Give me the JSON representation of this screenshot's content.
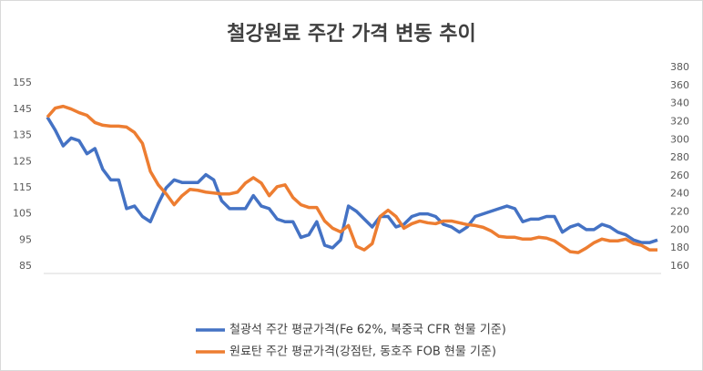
{
  "chart_data": {
    "type": "line",
    "title": "철강원료 주간 가격 변동 추이",
    "categories": [
      null,
      null,
      null,
      null,
      null,
      null,
      null,
      null,
      null,
      null,
      null,
      null,
      null,
      null,
      null,
      null,
      null,
      null,
      null,
      null,
      null,
      null,
      null,
      null,
      null,
      null,
      null,
      null,
      null,
      null,
      null,
      null,
      null,
      null,
      null,
      null,
      null,
      null,
      null,
      null,
      null,
      null,
      null,
      null,
      null,
      null,
      null,
      null,
      null,
      null,
      null,
      null,
      null,
      null,
      null,
      null,
      null,
      null,
      null,
      null,
      null,
      null,
      null,
      null,
      null,
      null,
      null,
      null,
      null,
      null,
      null,
      null,
      null,
      null,
      null,
      null,
      null,
      null
    ],
    "series": [
      {
        "name": "철광석 주간 평균가격(Fe 62%, 북중국 CFR 현물 기준)",
        "color": "#4472c4",
        "axis": "y",
        "values": [
          142,
          137,
          131,
          134,
          133,
          128,
          130,
          122,
          118,
          118,
          107,
          108,
          104,
          102,
          109,
          115,
          118,
          117,
          117,
          117,
          120,
          118,
          110,
          107,
          107,
          107,
          112,
          108,
          107,
          103,
          102,
          102,
          96,
          97,
          102,
          93,
          92,
          95,
          108,
          106,
          103,
          100,
          104,
          104,
          100,
          101,
          104,
          105,
          105,
          104,
          101,
          100,
          98,
          100,
          104,
          105,
          106,
          107,
          108,
          107,
          102,
          103,
          103,
          104,
          104,
          98,
          100,
          101,
          99,
          99,
          101,
          100,
          98,
          97,
          95,
          94,
          94,
          95
        ]
      },
      {
        "name": "원료탄 주간 평균가격(강점탄, 동호주 FOB 현물 기준)",
        "color": "#ed7d31",
        "axis": "y2",
        "values": [
          325,
          335,
          337,
          334,
          330,
          327,
          319,
          316,
          315,
          315,
          314,
          308,
          296,
          265,
          250,
          240,
          228,
          238,
          245,
          244,
          242,
          241,
          240,
          240,
          242,
          252,
          258,
          252,
          238,
          248,
          250,
          236,
          228,
          225,
          225,
          210,
          202,
          198,
          205,
          182,
          178,
          185,
          215,
          222,
          215,
          202,
          207,
          210,
          208,
          207,
          210,
          210,
          208,
          206,
          205,
          203,
          199,
          193,
          192,
          192,
          190,
          190,
          192,
          191,
          188,
          182,
          176,
          175,
          180,
          186,
          190,
          188,
          188,
          190,
          185,
          183,
          178,
          178
        ]
      }
    ],
    "ylim": [
      85,
      161
    ],
    "yticks": [
      85,
      95,
      105,
      115,
      125,
      135,
      145,
      155
    ],
    "y2lim": [
      160,
      380
    ],
    "y2ticks": [
      160,
      180,
      200,
      220,
      240,
      260,
      280,
      300,
      320,
      340,
      360,
      380
    ],
    "grid": false,
    "legend": "bottom"
  }
}
